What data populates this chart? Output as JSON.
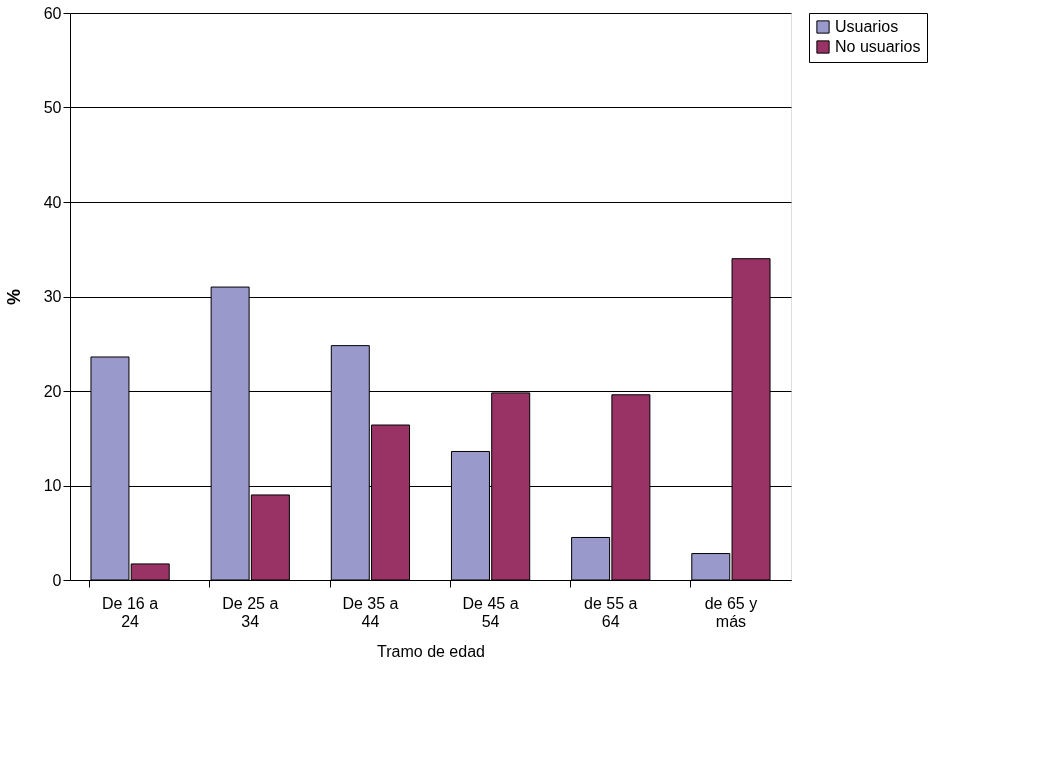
{
  "chart_data": {
    "type": "bar",
    "xlabel": "Tramo de edad",
    "ylabel": "%",
    "categories": [
      "De 16 a 24",
      "De 25 a 34",
      "De 35 a 44",
      "De 45 a 54",
      "de 55 a 64",
      "de 65 y más"
    ],
    "series": [
      {
        "name": "Usuarios",
        "color": "#9999cc",
        "values": [
          23.6,
          31.0,
          24.8,
          13.6,
          4.5,
          2.8
        ]
      },
      {
        "name": "No usuarios",
        "color": "#993366",
        "values": [
          1.7,
          9.0,
          16.4,
          19.8,
          19.6,
          34.0
        ]
      }
    ],
    "ylim": [
      0,
      60
    ],
    "yticks": [
      0,
      10,
      20,
      30,
      40,
      50,
      60
    ],
    "grid": "y",
    "legend": "right"
  }
}
